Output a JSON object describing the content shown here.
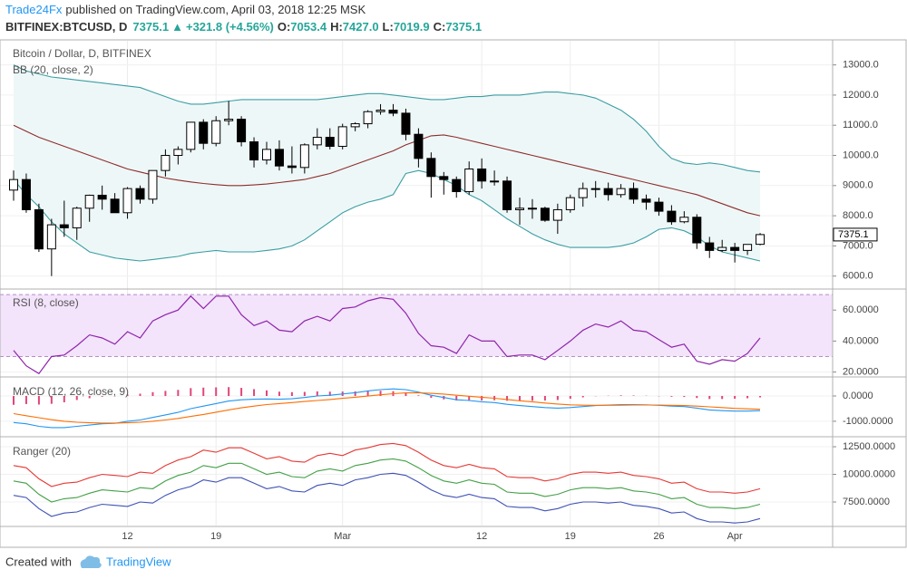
{
  "header": {
    "publisher": "Trade24Fx",
    "published": "published on TradingView.com, April 03, 2018 12:25 MSK",
    "symbol": "BITFINEX:BTCUSD, D",
    "price": "7375.1",
    "change_arrow": "▲",
    "change": "+321.8 (+4.56%)",
    "ohlc_labels": [
      "O:",
      "H:",
      "L:",
      "C:"
    ],
    "ohlc": [
      "7053.4",
      "7427.0",
      "7019.9",
      "7375.1"
    ]
  },
  "footer": {
    "created": "Created with",
    "brand": "TradingView"
  },
  "chart_data": [
    {
      "type": "candlestick",
      "title": "Bitcoin / Dollar, D, BITFINEX",
      "subtitle": "BB (20, close, 2)",
      "categories": [
        null,
        null,
        null,
        null,
        null,
        null,
        null,
        null,
        null,
        "12",
        null,
        null,
        null,
        null,
        null,
        null,
        "19",
        null,
        null,
        null,
        null,
        null,
        null,
        null,
        null,
        null,
        "Mar",
        null,
        null,
        null,
        null,
        null,
        null,
        null,
        null,
        null,
        null,
        "12",
        null,
        null,
        null,
        null,
        null,
        null,
        "19",
        null,
        null,
        null,
        null,
        null,
        null,
        "26",
        null,
        null,
        null,
        null,
        null,
        "Apr",
        null,
        null
      ],
      "open": [
        8850,
        9200,
        8200,
        6900,
        7700,
        7600,
        8250,
        8680,
        8550,
        8100,
        8900,
        8550,
        9500,
        10000,
        10200,
        11100,
        10400,
        11150,
        11200,
        10450,
        9850,
        10200,
        9650,
        9600,
        10350,
        10600,
        10300,
        10950,
        11050,
        11450,
        11500,
        11400,
        10700,
        9900,
        9300,
        9200,
        8800,
        9550,
        9150,
        9150,
        8200,
        8250,
        8250,
        7850,
        8200,
        8600,
        8900,
        8900,
        8700,
        8900,
        8550,
        8450,
        8150,
        7800,
        7950,
        7100,
        6850,
        6950,
        6850,
        7053.4
      ],
      "high": [
        9500,
        9400,
        8400,
        7900,
        8500,
        8300,
        8700,
        9000,
        8750,
        8950,
        9000,
        9500,
        10200,
        10300,
        11100,
        11200,
        11300,
        11800,
        11300,
        10600,
        10450,
        10500,
        10300,
        10400,
        10900,
        10900,
        11050,
        11100,
        11500,
        11700,
        11700,
        11550,
        10900,
        10100,
        9450,
        9300,
        9800,
        9900,
        9500,
        9300,
        8600,
        8550,
        8300,
        8400,
        8700,
        9100,
        9150,
        9100,
        9050,
        9100,
        8700,
        8600,
        8350,
        8150,
        8050,
        7300,
        7200,
        7100,
        7050,
        7427
      ],
      "low": [
        8500,
        8100,
        6800,
        6000,
        7300,
        7200,
        7800,
        8200,
        8100,
        7900,
        8400,
        8400,
        9300,
        9700,
        10100,
        10200,
        10300,
        11000,
        10300,
        9600,
        9700,
        9500,
        9400,
        9400,
        10200,
        10200,
        10200,
        10800,
        10900,
        11350,
        11300,
        10500,
        9600,
        8600,
        8700,
        8600,
        8700,
        8900,
        9000,
        8100,
        7700,
        7900,
        7800,
        7400,
        8100,
        8300,
        8600,
        8500,
        8600,
        8400,
        8200,
        8000,
        7700,
        7750,
        6900,
        6600,
        6800,
        6450,
        6700,
        7019.9
      ],
      "close": [
        9200,
        8200,
        6900,
        7700,
        7600,
        8250,
        8680,
        8550,
        8100,
        8900,
        8550,
        9500,
        10000,
        10200,
        11100,
        10400,
        11150,
        11200,
        10450,
        9850,
        10200,
        9650,
        9600,
        10350,
        10600,
        10300,
        10950,
        11050,
        11450,
        11500,
        11400,
        10700,
        9900,
        9300,
        9200,
        8800,
        9550,
        9150,
        9150,
        8200,
        8250,
        8250,
        7850,
        8200,
        8600,
        8900,
        8900,
        8700,
        8900,
        8550,
        8450,
        8150,
        7800,
        7950,
        7100,
        6850,
        6950,
        6850,
        7050,
        7375.1
      ],
      "up_color": "#ffffff",
      "down_color": "#000000",
      "bands": {
        "color": "#3b9ea3",
        "basis_color": "#8e2c2c",
        "fill": "#eef7f7",
        "upper": [
          13000,
          12800,
          12700,
          12600,
          12550,
          12500,
          12450,
          12400,
          12350,
          12300,
          12250,
          12100,
          11950,
          11800,
          11700,
          11700,
          11750,
          11800,
          11850,
          11850,
          11850,
          11850,
          11850,
          11850,
          11850,
          11900,
          11950,
          12000,
          12050,
          12050,
          12000,
          11950,
          11900,
          11850,
          11850,
          11900,
          11950,
          11950,
          12000,
          12000,
          12000,
          12050,
          12100,
          12100,
          12050,
          12000,
          11900,
          11700,
          11500,
          11200,
          10800,
          10300,
          9900,
          9750,
          9700,
          9750,
          9700,
          9600,
          9500,
          9450
        ],
        "basis": [
          11000,
          10800,
          10600,
          10450,
          10300,
          10150,
          10000,
          9850,
          9700,
          9550,
          9450,
          9350,
          9250,
          9180,
          9120,
          9070,
          9030,
          9000,
          9000,
          9020,
          9050,
          9100,
          9150,
          9200,
          9300,
          9400,
          9550,
          9700,
          9850,
          10000,
          10150,
          10350,
          10500,
          10650,
          10680,
          10600,
          10500,
          10400,
          10300,
          10200,
          10100,
          10000,
          9900,
          9800,
          9700,
          9600,
          9500,
          9400,
          9300,
          9200,
          9100,
          9000,
          8900,
          8800,
          8700,
          8550,
          8400,
          8250,
          8100,
          8000
        ],
        "lower": [
          9200,
          8700,
          8300,
          7800,
          7400,
          7100,
          6800,
          6700,
          6600,
          6550,
          6500,
          6550,
          6600,
          6650,
          6750,
          6800,
          6850,
          6800,
          6800,
          6800,
          6850,
          6900,
          7000,
          7200,
          7500,
          7800,
          8100,
          8300,
          8450,
          8550,
          8700,
          9400,
          9500,
          9400,
          9200,
          9000,
          8700,
          8500,
          8200,
          7900,
          7650,
          7400,
          7200,
          7050,
          6950,
          6950,
          6950,
          6950,
          7000,
          7100,
          7300,
          7550,
          7600,
          7500,
          7300,
          7000,
          6800,
          6700,
          6600,
          6500
        ]
      },
      "ylim": [
        5600,
        13800
      ],
      "yticks": [
        {
          "value": 6000,
          "label": "6000.0"
        },
        {
          "value": 7000,
          "label": "7000.0"
        },
        {
          "value": 8000,
          "label": "8000.0"
        },
        {
          "value": 9000,
          "label": "9000.0"
        },
        {
          "value": 10000,
          "label": "10000.0"
        },
        {
          "value": 11000,
          "label": "11000.0"
        },
        {
          "value": 12000,
          "label": "12000.0"
        },
        {
          "value": 13000,
          "label": "13000.0"
        }
      ]
    },
    {
      "type": "line",
      "title": "RSI (8, close)",
      "color": "#8e24aa",
      "band": [
        30,
        70
      ],
      "band_color": "#f3e3fb",
      "values": [
        34,
        24,
        19,
        30,
        31,
        37,
        44,
        42,
        38,
        46,
        42,
        53,
        57,
        60,
        69,
        61,
        69,
        69,
        57,
        50,
        53,
        47,
        46,
        53,
        56,
        53,
        61,
        62,
        66,
        68,
        67,
        58,
        45,
        37,
        36,
        32,
        44,
        40,
        40,
        30,
        31,
        31,
        28,
        34,
        40,
        47,
        51,
        49,
        53,
        47,
        46,
        41,
        36,
        38,
        27,
        25,
        28,
        27,
        32,
        42
      ],
      "ylim": [
        18,
        73
      ],
      "yticks": [
        {
          "value": 20,
          "label": "20.0000"
        },
        {
          "value": 40,
          "label": "40.0000"
        },
        {
          "value": 60,
          "label": "60.0000"
        }
      ]
    },
    {
      "type": "macd",
      "title": "MACD (12, 26, close, 9)",
      "histogram": {
        "color": "#e0457b",
        "values": [
          -350,
          -320,
          -340,
          -310,
          -250,
          -160,
          -90,
          -30,
          -10,
          60,
          90,
          150,
          200,
          240,
          310,
          330,
          340,
          350,
          320,
          270,
          220,
          170,
          150,
          160,
          180,
          170,
          175,
          180,
          205,
          205,
          190,
          130,
          25,
          -75,
          -135,
          -180,
          -170,
          -180,
          -170,
          -190,
          -190,
          -190,
          -180,
          -160,
          -110,
          -55,
          -10,
          10,
          25,
          20,
          10,
          -10,
          -30,
          -40,
          -80,
          -120,
          -120,
          -110,
          -90,
          -55
        ]
      },
      "series": [
        {
          "color": "#2196f3",
          "values": [
            -1050,
            -1100,
            -1200,
            -1250,
            -1250,
            -1200,
            -1150,
            -1100,
            -1080,
            -1000,
            -950,
            -850,
            -750,
            -650,
            -500,
            -400,
            -300,
            -200,
            -150,
            -130,
            -120,
            -130,
            -110,
            -60,
            0,
            30,
            80,
            130,
            200,
            250,
            280,
            250,
            150,
            30,
            -60,
            -150,
            -180,
            -230,
            -260,
            -330,
            -380,
            -420,
            -460,
            -480,
            -460,
            -420,
            -380,
            -360,
            -340,
            -340,
            -350,
            -370,
            -400,
            -420,
            -480,
            -550,
            -580,
            -600,
            -600,
            -580
          ]
        },
        {
          "color": "#ff6d00",
          "values": [
            -700,
            -780,
            -860,
            -940,
            -1000,
            -1040,
            -1060,
            -1070,
            -1070,
            -1060,
            -1040,
            -1000,
            -950,
            -890,
            -810,
            -730,
            -640,
            -550,
            -470,
            -400,
            -340,
            -300,
            -260,
            -220,
            -180,
            -140,
            -95,
            -50,
            -5,
            45,
            90,
            120,
            125,
            105,
            75,
            30,
            -10,
            -50,
            -90,
            -140,
            -190,
            -230,
            -280,
            -320,
            -350,
            -365,
            -370,
            -370,
            -365,
            -360,
            -360,
            -360,
            -370,
            -380,
            -400,
            -430,
            -460,
            -490,
            -510,
            -525
          ]
        }
      ],
      "ylim": [
        -1540,
        680
      ],
      "yticks": [
        {
          "value": -1000,
          "label": "-1000.0000"
        },
        {
          "value": 0,
          "label": "0.0000"
        }
      ]
    },
    {
      "type": "line",
      "title": "Ranger (20)",
      "series": [
        {
          "color": "#e53935",
          "values": [
            10800,
            10600,
            9600,
            8900,
            9200,
            9300,
            9700,
            10000,
            9900,
            9800,
            10200,
            10100,
            10800,
            11300,
            11600,
            12200,
            12000,
            12400,
            12400,
            11900,
            11400,
            11600,
            11200,
            11100,
            11700,
            11900,
            11700,
            12200,
            12400,
            12700,
            12800,
            12600,
            12000,
            11300,
            10800,
            10600,
            10900,
            10600,
            10500,
            9800,
            9700,
            9700,
            9400,
            9600,
            10000,
            10200,
            10200,
            10100,
            10200,
            9900,
            9800,
            9600,
            9200,
            9300,
            8700,
            8400,
            8400,
            8300,
            8400,
            8700
          ]
        },
        {
          "color": "#43a047",
          "values": [
            9400,
            9200,
            8200,
            7500,
            7800,
            7900,
            8300,
            8600,
            8500,
            8400,
            8800,
            8700,
            9400,
            9900,
            10200,
            10800,
            10600,
            11000,
            11000,
            10500,
            10000,
            10200,
            9800,
            9700,
            10300,
            10500,
            10300,
            10800,
            11000,
            11300,
            11400,
            11200,
            10600,
            9900,
            9400,
            9200,
            9500,
            9200,
            9100,
            8400,
            8300,
            8300,
            8000,
            8200,
            8600,
            8800,
            8800,
            8700,
            8800,
            8500,
            8400,
            8200,
            7800,
            7900,
            7300,
            7000,
            7000,
            6900,
            7000,
            7300
          ]
        },
        {
          "color": "#3f51b5",
          "values": [
            8100,
            7900,
            6900,
            6200,
            6500,
            6600,
            7000,
            7300,
            7200,
            7100,
            7500,
            7400,
            8100,
            8600,
            8900,
            9500,
            9300,
            9700,
            9700,
            9200,
            8700,
            8900,
            8500,
            8400,
            9000,
            9200,
            9000,
            9500,
            9700,
            10000,
            10100,
            9900,
            9300,
            8600,
            8100,
            7900,
            8200,
            7900,
            7800,
            7100,
            7000,
            7000,
            6700,
            6900,
            7300,
            7500,
            7500,
            7400,
            7500,
            7200,
            7100,
            6900,
            6500,
            6600,
            6000,
            5700,
            5700,
            5600,
            5700,
            6000
          ]
        }
      ],
      "ylim": [
        5370,
        13240
      ],
      "yticks": [
        {
          "value": 7500,
          "label": "7500.0000"
        },
        {
          "value": 10000,
          "label": "10000.0000"
        },
        {
          "value": 12500,
          "label": "12500.0000"
        }
      ]
    }
  ]
}
